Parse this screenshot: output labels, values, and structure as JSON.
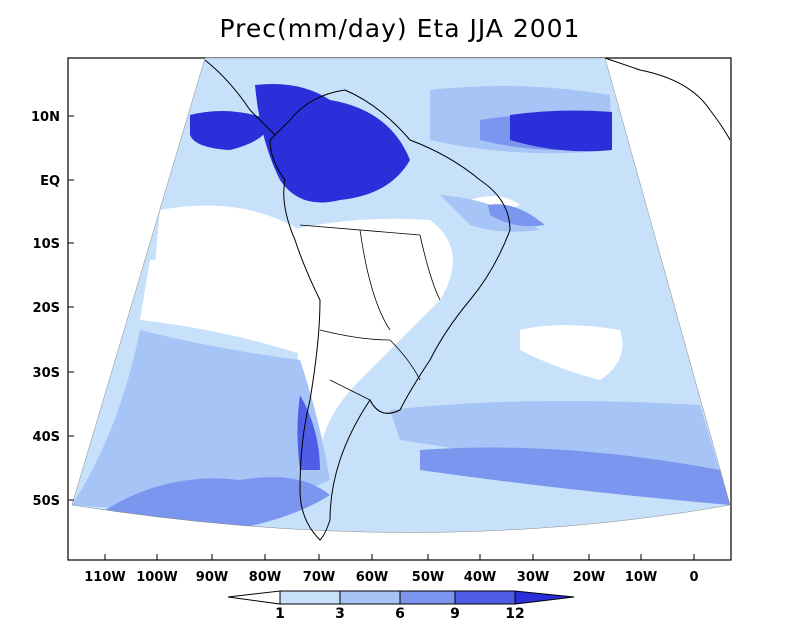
{
  "title": "Prec(mm/day) Eta JJA 2001",
  "axes": {
    "y_ticks": [
      "10N",
      "EQ",
      "10S",
      "20S",
      "30S",
      "40S",
      "50S"
    ],
    "x_ticks": [
      "110W",
      "100W",
      "90W",
      "80W",
      "70W",
      "60W",
      "50W",
      "40W",
      "30W",
      "20W",
      "10W",
      "0"
    ]
  },
  "colorbar": {
    "labels": [
      "1",
      "3",
      "6",
      "9",
      "12"
    ],
    "colors": [
      "#ffffff",
      "#c8e1fb",
      "#a6c4f5",
      "#7b96ee",
      "#4e5ee6",
      "#2b2fd9"
    ]
  },
  "map_colors": {
    "lt1": "#ffffff",
    "c1_3": "#c8e1fb",
    "c3_6": "#a6c4f5",
    "c6_9": "#7b96ee",
    "c9_12": "#4e5ee6",
    "gt12": "#2b2fd9",
    "land_outline": "#000000"
  }
}
